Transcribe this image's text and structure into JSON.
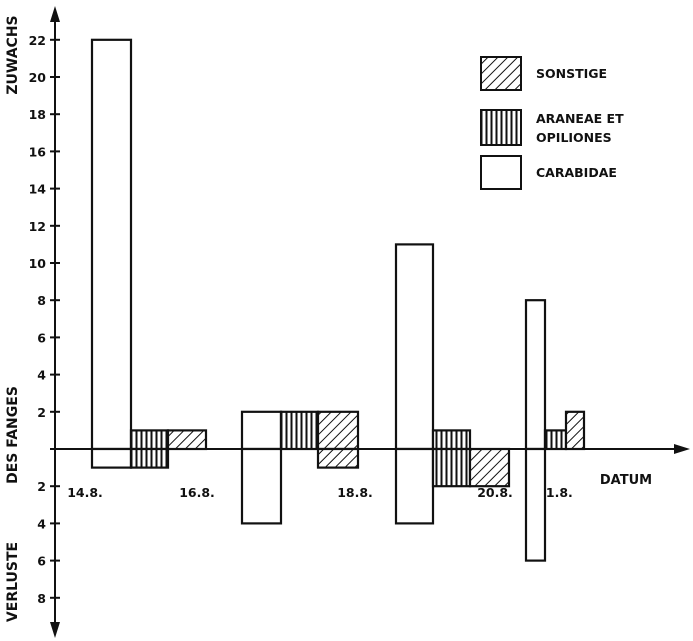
{
  "chart_data": {
    "type": "bar",
    "title": "",
    "ylabel_top": "ZUWACHS",
    "ylabel_middle": "DES FANGES",
    "ylabel_bottom": "VERLUSTE",
    "xlabel": "DATUM",
    "yticks_positive": [
      "2",
      "4",
      "6",
      "8",
      "10",
      "12",
      "14",
      "16",
      "18",
      "20",
      "22"
    ],
    "yticks_negative": [
      "2",
      "4",
      "6",
      "8"
    ],
    "x_tick_labels": [
      "14.8.",
      "16.8.",
      "18.8.",
      "20.8.",
      "21.8."
    ],
    "ylim": [
      -10,
      23
    ],
    "legend": {
      "position": "top-right",
      "entries": [
        {
          "label": "SONSTIGE",
          "pattern": "hatch-diagonal"
        },
        {
          "label": "ARANEAE ET",
          "label2": "OPILIONES",
          "pattern": "hatch-vertical"
        },
        {
          "label": "CARABIDAE",
          "pattern": "empty"
        }
      ]
    },
    "series": [
      {
        "name": "CARABIDAE",
        "pattern": "empty",
        "bars": [
          {
            "period": "14.8.",
            "value": 22
          },
          {
            "period": "14.8.",
            "value": -1
          },
          {
            "period": "16.8.",
            "value": 2
          },
          {
            "period": "16.8.",
            "value": -4
          },
          {
            "period": "18.8.",
            "value": 11
          },
          {
            "period": "18.8.",
            "value": -4
          },
          {
            "period": "20.8.",
            "value": 8
          },
          {
            "period": "20.8.",
            "value": -6
          }
        ]
      },
      {
        "name": "ARANEAE ET OPILIONES",
        "pattern": "hatch-vertical",
        "bars": [
          {
            "period": "14.8.",
            "value": 1
          },
          {
            "period": "14.8.",
            "value": -1
          },
          {
            "period": "16.8.",
            "value": 2
          },
          {
            "period": "18.8.",
            "value": 1
          },
          {
            "period": "18.8.",
            "value": -2
          },
          {
            "period": "20.8.",
            "value": 1
          }
        ]
      },
      {
        "name": "SONSTIGE",
        "pattern": "hatch-diagonal",
        "bars": [
          {
            "period": "14.8.",
            "value": 1
          },
          {
            "period": "16.8.",
            "value": 2
          },
          {
            "period": "16.8.",
            "value": -1
          },
          {
            "period": "18.8.",
            "value": -2
          },
          {
            "period": "20.8.",
            "value": 2
          }
        ]
      }
    ]
  }
}
